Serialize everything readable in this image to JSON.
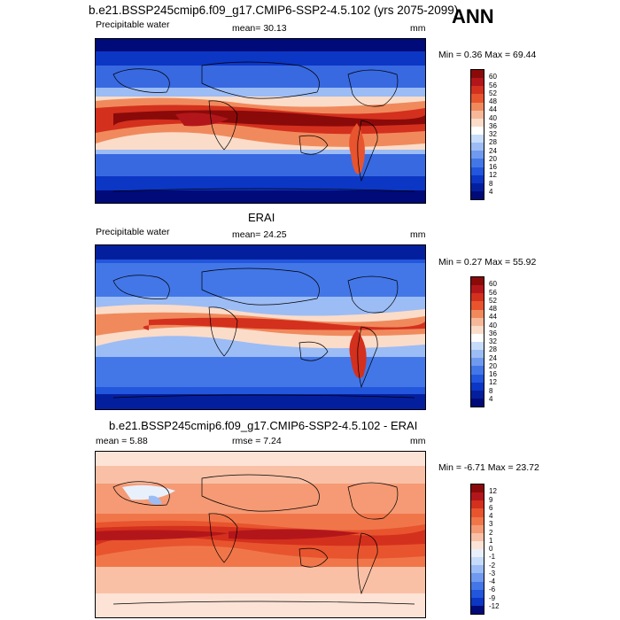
{
  "chart_data": [
    {
      "type": "heatmap",
      "title": "b.e21.BSSP245cmip6.f09_g17.CMIP6-SSP2-4.5.102 (yrs 2075-2099)",
      "season": "ANN",
      "variable": "Precipitable water",
      "mean_text": "mean=  30.13",
      "units": "mm",
      "minmax_text": "Min =   0.36 Max =  69.44",
      "min": 0.36,
      "max": 69.44,
      "mean": 30.13,
      "colorbar": {
        "levels": [
          "60",
          "56",
          "52",
          "48",
          "44",
          "40",
          "36",
          "32",
          "28",
          "24",
          "20",
          "16",
          "12",
          "8",
          "4"
        ],
        "colors": [
          "#8a0a0a",
          "#b3161a",
          "#d4301e",
          "#e8542e",
          "#f08a5c",
          "#f7b89a",
          "#fbdcc9",
          "#ffffff",
          "#c6dcfa",
          "#9cbcf5",
          "#6f9af0",
          "#4377e8",
          "#2256dc",
          "#0c36c4",
          "#041f9e",
          "#000a78"
        ]
      }
    },
    {
      "type": "heatmap",
      "title": "ERAI",
      "variable": "Precipitable water",
      "mean_text": "mean=  24.25",
      "units": "mm",
      "minmax_text": "Min =   0.27 Max =  55.92",
      "min": 0.27,
      "max": 55.92,
      "mean": 24.25,
      "colorbar": {
        "levels": [
          "60",
          "56",
          "52",
          "48",
          "44",
          "40",
          "36",
          "32",
          "28",
          "24",
          "20",
          "16",
          "12",
          "8",
          "4"
        ],
        "colors": [
          "#8a0a0a",
          "#b3161a",
          "#d4301e",
          "#e8542e",
          "#f08a5c",
          "#f7b89a",
          "#fbdcc9",
          "#ffffff",
          "#c6dcfa",
          "#9cbcf5",
          "#6f9af0",
          "#4377e8",
          "#2256dc",
          "#0c36c4",
          "#041f9e",
          "#000a78"
        ]
      }
    },
    {
      "type": "heatmap",
      "title": "b.e21.BSSP245cmip6.f09_g17.CMIP6-SSP2-4.5.102 - ERAI",
      "mean_text": "mean =   5.88",
      "rmse_text": "rmse =   7.24",
      "units": "mm",
      "minmax_text": "Min =  -6.71 Max =  23.72",
      "min": -6.71,
      "max": 23.72,
      "mean": 5.88,
      "rmse": 7.24,
      "colorbar": {
        "levels": [
          "12",
          "9",
          "6",
          "4",
          "3",
          "2",
          "1",
          "0",
          "-1",
          "-2",
          "-3",
          "-4",
          "-6",
          "-9",
          "-12"
        ],
        "colors": [
          "#8a0a0a",
          "#b3161a",
          "#d4301e",
          "#e8542e",
          "#f0764a",
          "#f59a74",
          "#f9c0a6",
          "#fde3d6",
          "#e8f0fc",
          "#c6dcfa",
          "#9cbcf5",
          "#6f9af0",
          "#4377e8",
          "#2256dc",
          "#0c36c4",
          "#000a78"
        ]
      }
    }
  ]
}
